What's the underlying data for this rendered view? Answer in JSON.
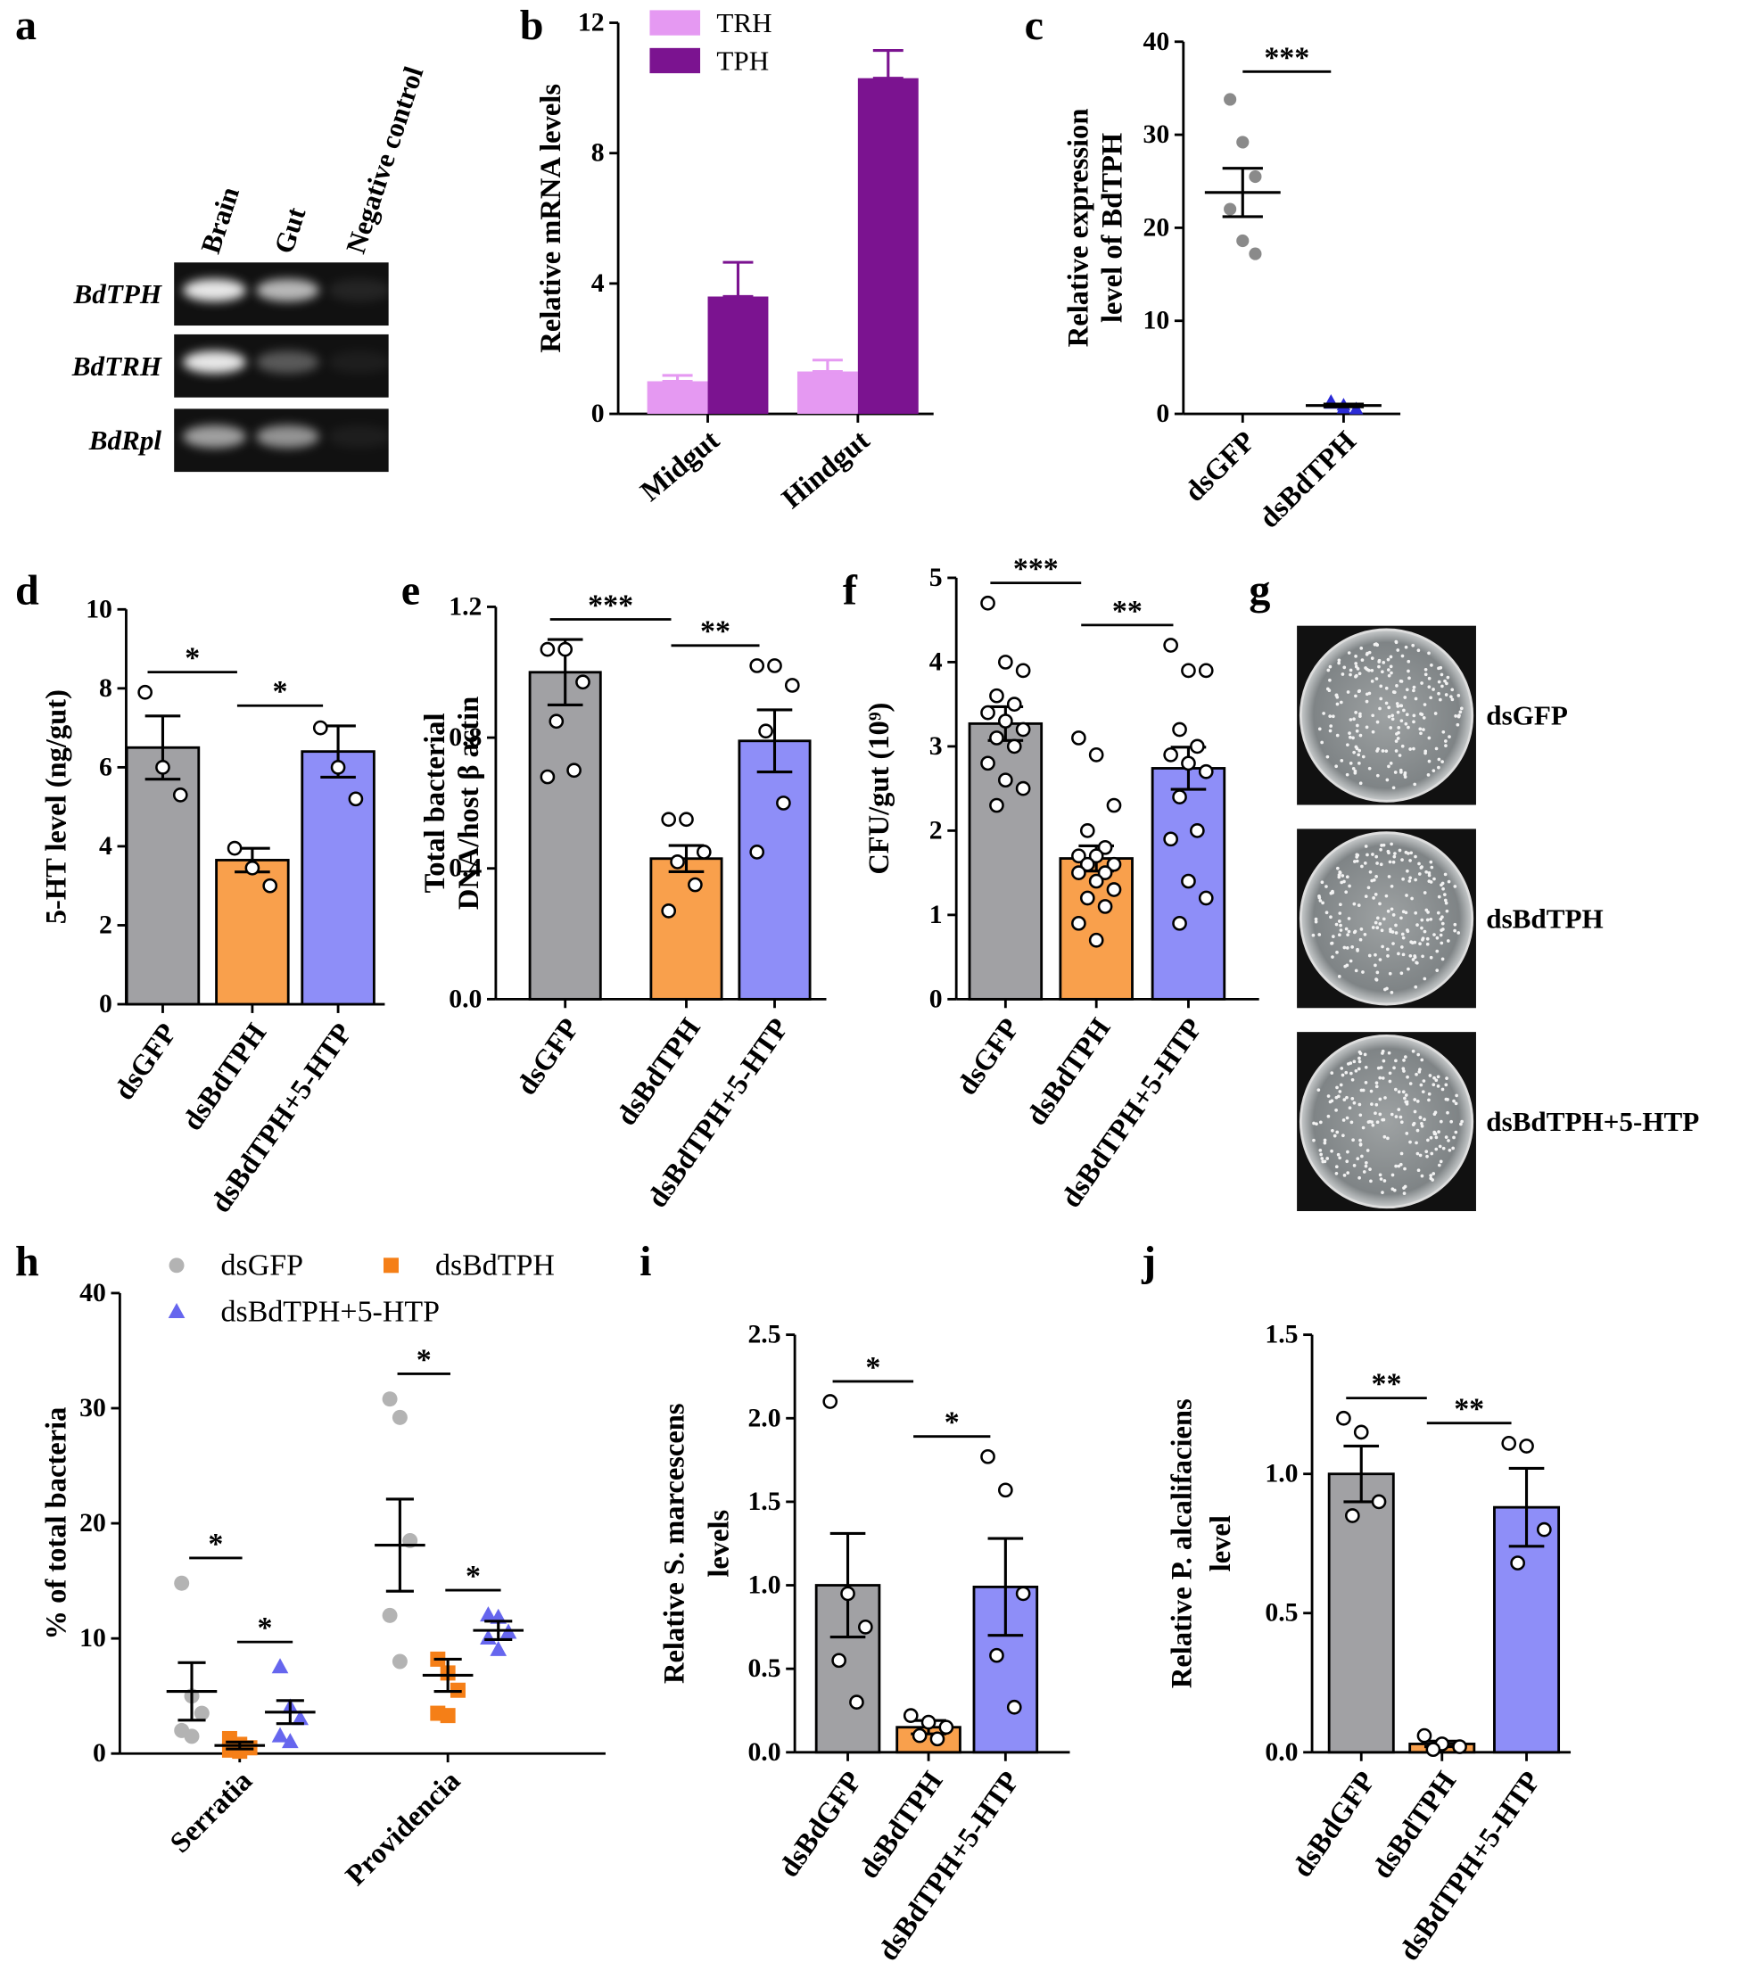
{
  "chart_data": [
    {
      "panel": "a",
      "type": "gel",
      "lanes": [
        "Brain",
        "Gut",
        "Negative control"
      ],
      "genes": [
        "BdTPH",
        "BdTRH",
        "BdRpl"
      ]
    },
    {
      "panel": "b",
      "type": "bar",
      "y_label": [
        "Relative mRNA levels"
      ],
      "categories": [
        "Midgut",
        "Hindgut"
      ],
      "series": [
        {
          "name": "TRH",
          "color": "#e599f2",
          "values": [
            1.0,
            1.3
          ],
          "errors": [
            0.18,
            0.35
          ]
        },
        {
          "name": "TPH",
          "color": "#7b1390",
          "values": [
            3.6,
            10.3
          ],
          "errors": [
            1.05,
            0.85
          ]
        }
      ],
      "ylim": [
        0,
        12
      ],
      "yticks": [
        0,
        4,
        8,
        12
      ],
      "legend": "upper left"
    },
    {
      "panel": "c",
      "type": "dotplot",
      "y_label": [
        "Relative expression",
        "level of BdTPH"
      ],
      "categories": [
        "dsGFP",
        "dsBdTPH"
      ],
      "points": [
        [
          33.8,
          29.2,
          25.5,
          22.0,
          18.6,
          17.2
        ],
        [
          1.3,
          0.9,
          0.5,
          1.1,
          0.6
        ]
      ],
      "means": [
        23.8,
        0.9
      ],
      "errors": [
        2.6,
        0.15
      ],
      "colors": [
        "#8a8a8a",
        "#2b2bd6"
      ],
      "markers": [
        "circle",
        "triangle"
      ],
      "significance": [
        "***"
      ],
      "ylim": [
        0,
        40
      ],
      "yticks": [
        0,
        10,
        20,
        30,
        40
      ]
    },
    {
      "panel": "d",
      "type": "barpoints",
      "y_label": [
        "5-HT level (ng/gut)"
      ],
      "categories": [
        "dsGFP",
        "dsBdTPH",
        "dsBdTPH+5-HTP"
      ],
      "values": [
        6.5,
        3.65,
        6.4
      ],
      "errors": [
        0.8,
        0.3,
        0.65
      ],
      "points": [
        [
          7.9,
          6.0,
          5.3
        ],
        [
          3.95,
          3.45,
          3.0
        ],
        [
          7.0,
          6.0,
          5.2
        ]
      ],
      "colors": [
        "#a1a1a4",
        "#f9a04c",
        "#8e8ef8"
      ],
      "significance": [
        "*",
        "*"
      ],
      "ylim": [
        0,
        10
      ],
      "yticks": [
        0,
        2,
        4,
        6,
        8,
        10
      ]
    },
    {
      "panel": "e",
      "type": "barpoints",
      "y_label": [
        "Total bacterial",
        "DNA/host β actin"
      ],
      "categories": [
        "dsGFP",
        "dsBdTPH",
        "dsBdTPH+5-HTP"
      ],
      "values": [
        1.0,
        0.43,
        0.79
      ],
      "errors": [
        0.1,
        0.04,
        0.095
      ],
      "points": [
        [
          1.07,
          1.07,
          0.97,
          0.85,
          0.7,
          0.68
        ],
        [
          0.55,
          0.55,
          0.45,
          0.42,
          0.35,
          0.27
        ],
        [
          1.02,
          1.02,
          0.96,
          0.82,
          0.6,
          0.45
        ]
      ],
      "colors": [
        "#a1a1a4",
        "#f9a04c",
        "#8e8ef8"
      ],
      "significance": [
        "***",
        "**"
      ],
      "ylim": [
        0,
        1.2
      ],
      "yticks": [
        {
          "value": 0,
          "label": "0.0"
        },
        0.4,
        0.8,
        1.2
      ]
    },
    {
      "panel": "f",
      "type": "barpoints",
      "y_label": [
        "CFU/gut (10⁹)"
      ],
      "categories": [
        "dsGFP",
        "dsBdTPH",
        "dsBdTPH+5-HTP"
      ],
      "values": [
        3.27,
        1.67,
        2.74
      ],
      "errors": [
        0.2,
        0.15,
        0.25
      ],
      "points": [
        [
          4.7,
          4.0,
          3.9,
          3.6,
          3.5,
          3.4,
          3.3,
          3.2,
          3.1,
          3.0,
          2.8,
          2.6,
          2.5,
          2.3
        ],
        [
          3.1,
          2.9,
          2.3,
          2.0,
          1.8,
          1.7,
          1.7,
          1.6,
          1.6,
          1.5,
          1.5,
          1.4,
          1.3,
          1.2,
          1.1,
          0.9,
          0.7
        ],
        [
          4.2,
          3.9,
          3.9,
          3.2,
          3.0,
          2.9,
          2.8,
          2.7,
          2.4,
          2.0,
          1.9,
          1.4,
          1.2,
          0.9
        ]
      ],
      "colors": [
        "#a1a1a4",
        "#f9a04c",
        "#8e8ef8"
      ],
      "significance": [
        "***",
        "**"
      ],
      "ylim": [
        0,
        5
      ],
      "yticks": [
        0,
        1,
        2,
        3,
        4,
        5
      ]
    },
    {
      "panel": "g",
      "type": "plates",
      "labels": [
        "dsGFP",
        "dsBdTPH",
        "dsBdTPH+5-HTP"
      ]
    },
    {
      "panel": "h",
      "type": "groupscatter",
      "y_label": [
        "% of total bacteria"
      ],
      "categories": [
        "Serratia",
        "Providencia"
      ],
      "series": [
        {
          "name": "dsGFP",
          "color": "#b3b3b3",
          "marker": "circle",
          "points": [
            [
              14.8,
              5.0,
              3.5,
              2.0,
              1.5
            ],
            [
              30.8,
              29.2,
              18.5,
              12.0,
              8.0
            ]
          ],
          "means": [
            5.4,
            18.1
          ],
          "errors": [
            2.5,
            4.0
          ]
        },
        {
          "name": "dsBdTPH",
          "color": "#f57f17",
          "marker": "square",
          "points": [
            [
              1.3,
              0.8,
              0.5,
              0.3,
              0.2
            ],
            [
              8.2,
              7.0,
              5.5,
              3.5,
              3.3
            ]
          ],
          "means": [
            0.7,
            6.8
          ],
          "errors": [
            0.3,
            1.4
          ]
        },
        {
          "name": "dsBdTPH+5-HTP",
          "color": "#6666ee",
          "marker": "triangle",
          "points": [
            [
              7.5,
              4.0,
              3.0,
              1.5,
              1.0
            ],
            [
              12.0,
              11.8,
              10.5,
              10.0,
              9.0
            ]
          ],
          "means": [
            3.6,
            10.7
          ],
          "errors": [
            1.0,
            0.8
          ]
        }
      ],
      "significance": [
        [
          "*",
          "*"
        ],
        [
          "*",
          "*"
        ]
      ],
      "ylim": [
        0,
        40
      ],
      "yticks": [
        0,
        10,
        20,
        30,
        40
      ]
    },
    {
      "panel": "i",
      "type": "barpoints",
      "y_label": [
        "Relative S. marcescens",
        "levels"
      ],
      "categories": [
        "dsBdGFP",
        "dsBdTPH",
        "dsBdTPH+5-HTP"
      ],
      "values": [
        1.0,
        0.15,
        0.99
      ],
      "errors": [
        0.31,
        0.04,
        0.29
      ],
      "points": [
        [
          2.1,
          0.95,
          0.75,
          0.55,
          0.3
        ],
        [
          0.22,
          0.18,
          0.15,
          0.1,
          0.08
        ],
        [
          1.77,
          1.57,
          0.95,
          0.58,
          0.27
        ]
      ],
      "colors": [
        "#a1a1a4",
        "#f9a04c",
        "#8e8ef8"
      ],
      "significance": [
        "*",
        "*"
      ],
      "ylim": [
        0,
        2.5
      ],
      "yticks": [
        {
          "value": 0,
          "label": "0.0"
        },
        0.5,
        {
          "value": 1,
          "label": "1.0"
        },
        1.5,
        {
          "value": 2,
          "label": "2.0"
        },
        2.5
      ]
    },
    {
      "panel": "j",
      "type": "barpoints",
      "y_label": [
        "Relative P. alcalifaciens",
        "level"
      ],
      "categories": [
        "dsBdGFP",
        "dsBdTPH",
        "dsBdTPH+5-HTP"
      ],
      "values": [
        1.0,
        0.03,
        0.88
      ],
      "errors": [
        0.1,
        0.01,
        0.14
      ],
      "points": [
        [
          1.2,
          1.15,
          0.9,
          0.85
        ],
        [
          0.06,
          0.03,
          0.02,
          0.01
        ],
        [
          1.11,
          1.1,
          0.8,
          0.68
        ]
      ],
      "colors": [
        "#a1a1a4",
        "#f9a04c",
        "#8e8ef8"
      ],
      "significance": [
        "**",
        "**"
      ],
      "ylim": [
        0,
        1.5
      ],
      "yticks": [
        {
          "value": 0,
          "label": "0.0"
        },
        0.5,
        {
          "value": 1,
          "label": "1.0"
        },
        1.5
      ]
    }
  ]
}
